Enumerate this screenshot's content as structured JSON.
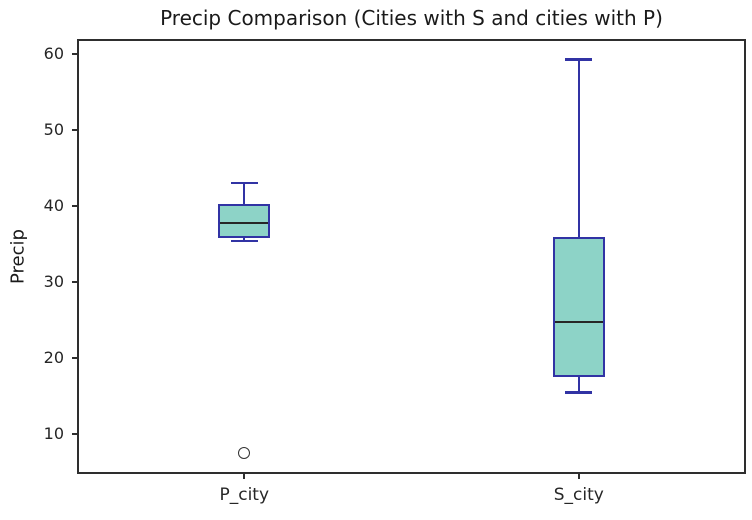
{
  "chart_data": {
    "type": "boxplot",
    "title": "Precip Comparison (Cities with S and cities with P)",
    "ylabel": "Precip",
    "xlabel": "",
    "categories": [
      "P_city",
      "S_city"
    ],
    "yticks": [
      10,
      20,
      30,
      40,
      50,
      60
    ],
    "ylim": [
      4.8,
      62.0
    ],
    "xlim": [
      0.5,
      2.5
    ],
    "grid": false,
    "legend": "none",
    "boxes": [
      {
        "label": "P_city",
        "whisker_low": 35.4,
        "q1": 35.8,
        "median": 37.8,
        "q3": 40.3,
        "whisker_high": 43.1,
        "outliers": [
          7.6
        ]
      },
      {
        "label": "S_city",
        "whisker_low": 15.5,
        "q1": 17.5,
        "median": 24.8,
        "q3": 35.9,
        "whisker_high": 59.3,
        "outliers": []
      }
    ],
    "colors": {
      "box_fill": "#8dd3c7",
      "box_edge": "#3133a4",
      "median": "#262626",
      "outlier_edge": "#333333",
      "spine": "#2e2e2e",
      "text": "#262626"
    }
  }
}
